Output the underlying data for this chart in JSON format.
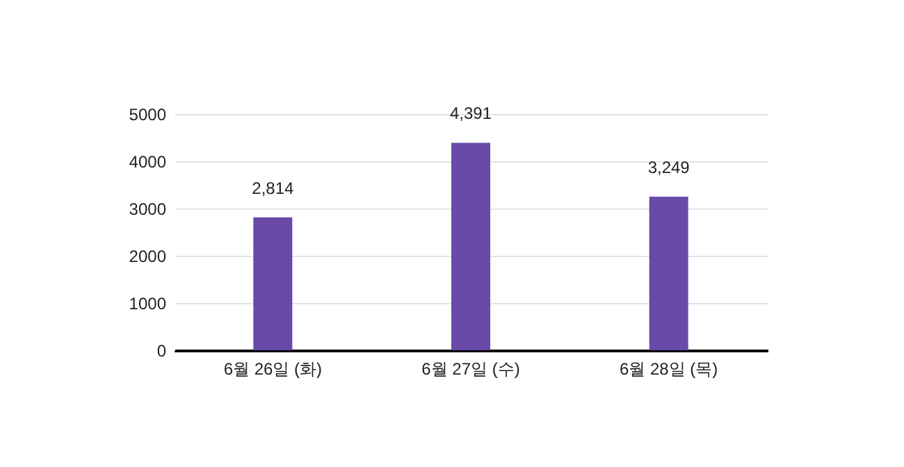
{
  "chart_data": {
    "type": "bar",
    "categories": [
      "6월 26일 (화)",
      "6월 27일 (수)",
      "6월 28일 (목)"
    ],
    "values": [
      2814,
      4391,
      3249
    ],
    "color": "#6a4aa8",
    "ylim": [
      0,
      5000
    ],
    "yticks": [
      0,
      1000,
      2000,
      3000,
      4000,
      5000
    ],
    "grid": "y",
    "value_labels": [
      "2,814",
      "4,391",
      "3,249"
    ]
  }
}
